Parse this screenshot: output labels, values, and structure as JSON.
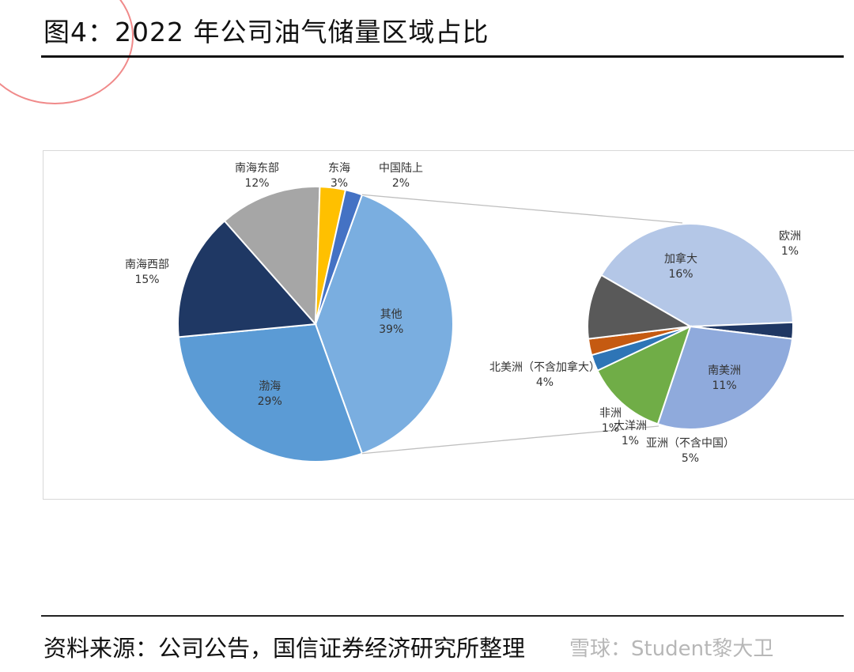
{
  "page": {
    "title": "图4：2022 年公司油气储量区域占比",
    "source": "资料来源：公司公告，国信证券经济研究所整理",
    "watermark": "雪球：Student黎大卫"
  },
  "colors": {
    "其他": "#7aaee0",
    "渤海": "#5b9bd5",
    "南海西部": "#1f3864",
    "南海东部": "#a6a6a6",
    "东海": "#ffc000",
    "中国陆上": "#4472c4",
    "加拿大": "#b4c7e7",
    "欧洲": "#203864",
    "南美洲": "#8faadc",
    "亚洲（不含中国）": "#70ad47",
    "大洋洲": "#2e75b6",
    "非洲": "#c55a11",
    "北美洲（不含加拿大）": "#595959"
  },
  "chart_data": {
    "type": "pie",
    "main": {
      "slices": [
        {
          "label": "其他",
          "value": 39,
          "text": "39%"
        },
        {
          "label": "渤海",
          "value": 29,
          "text": "29%"
        },
        {
          "label": "南海西部",
          "value": 15,
          "text": "15%"
        },
        {
          "label": "南海东部",
          "value": 12,
          "text": "12%"
        },
        {
          "label": "东海",
          "value": 3,
          "text": "3%"
        },
        {
          "label": "中国陆上",
          "value": 2,
          "text": "2%"
        }
      ]
    },
    "breakdown_of": "其他",
    "secondary": {
      "slices": [
        {
          "label": "加拿大",
          "value": 16,
          "text": "16%"
        },
        {
          "label": "欧洲",
          "value": 1,
          "text": "1%"
        },
        {
          "label": "南美洲",
          "value": 11,
          "text": "11%"
        },
        {
          "label": "亚洲（不含中国）",
          "value": 5,
          "text": "5%"
        },
        {
          "label": "大洋洲",
          "value": 1,
          "text": "1%"
        },
        {
          "label": "非洲",
          "value": 1,
          "text": "1%"
        },
        {
          "label": "北美洲（不含加拿大）",
          "value": 4,
          "text": "4%"
        }
      ]
    }
  }
}
